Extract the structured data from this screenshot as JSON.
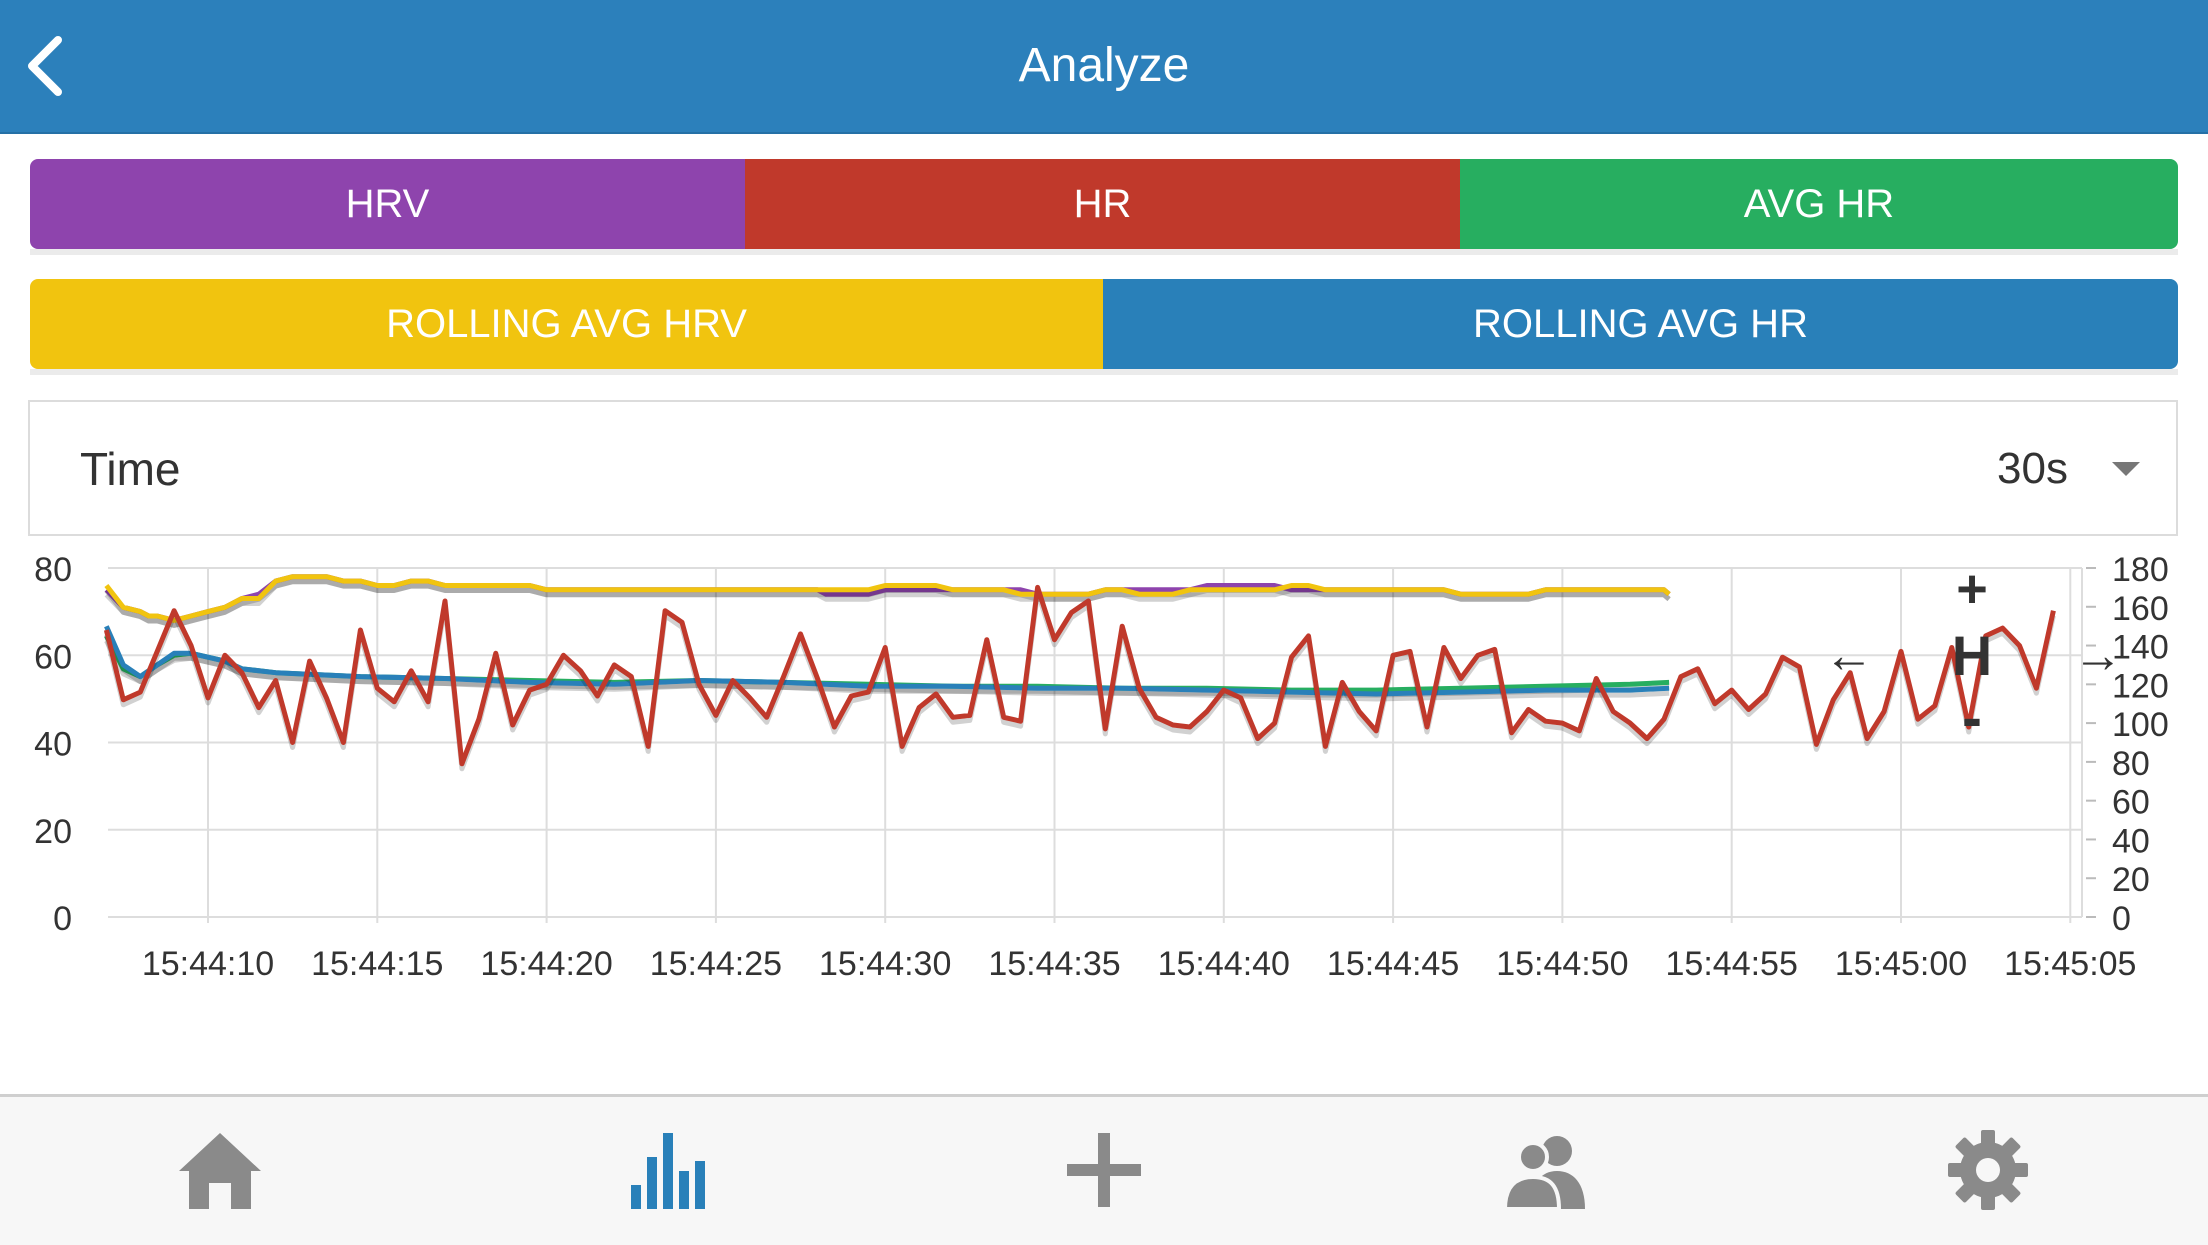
{
  "header": {
    "title": "Analyze"
  },
  "buttons": {
    "hrv": "HRV",
    "hr": "HR",
    "avg_hr": "AVG HR",
    "rolling_avg_hrv": "ROLLING AVG HRV",
    "rolling_avg_hr": "ROLLING AVG HR"
  },
  "selector": {
    "label": "Time",
    "value": "30s"
  },
  "chart_controls": {
    "plus": "+",
    "minus": "-",
    "h": "H",
    "left": "←",
    "right": "→"
  },
  "colors": {
    "header": "#2c80bb",
    "hrv": "#8e44ad",
    "hr": "#c0392b",
    "avg_hr": "#27ae60",
    "rolling_avg_hrv": "#f1c40f",
    "rolling_avg_hr": "#2980b9",
    "tab_active": "#2980b9",
    "tab_inactive": "#8a8a8a"
  },
  "tabs": [
    {
      "icon": "home-icon",
      "active": false
    },
    {
      "icon": "bar-chart-icon",
      "active": true
    },
    {
      "icon": "plus-icon",
      "active": false
    },
    {
      "icon": "users-icon",
      "active": false
    },
    {
      "icon": "gear-icon",
      "active": false
    }
  ],
  "chart_data": {
    "type": "line",
    "x_ticks": [
      "15:44:10",
      "15:44:15",
      "15:44:20",
      "15:44:25",
      "15:44:30",
      "15:44:35",
      "15:44:40",
      "15:44:45",
      "15:44:50",
      "15:44:55",
      "15:45:00",
      "15:45:05"
    ],
    "x_range": [
      "15:44:07",
      "15:45:05"
    ],
    "y_left": {
      "range": [
        0,
        80
      ],
      "ticks": [
        0,
        20,
        40,
        60,
        80
      ]
    },
    "y_right": {
      "range": [
        0,
        180
      ],
      "ticks": [
        0,
        20,
        40,
        60,
        80,
        100,
        120,
        140,
        160,
        180
      ]
    },
    "grid": true,
    "legend": "none",
    "series": [
      {
        "key": "hrv",
        "axis": "left",
        "color": "#8e44ad",
        "points": [
          [
            0,
            75
          ],
          [
            1,
            71
          ],
          [
            2,
            70
          ],
          [
            2.5,
            69
          ],
          [
            3,
            69
          ],
          [
            4,
            68
          ],
          [
            5,
            69
          ],
          [
            6,
            70
          ],
          [
            7,
            71
          ],
          [
            8,
            73
          ],
          [
            9,
            74
          ],
          [
            10,
            77
          ],
          [
            11,
            78
          ],
          [
            13,
            78
          ],
          [
            14,
            77
          ],
          [
            15,
            77
          ],
          [
            16,
            76
          ],
          [
            17,
            76
          ],
          [
            18,
            77
          ],
          [
            19,
            77
          ],
          [
            20,
            76
          ],
          [
            25,
            76
          ],
          [
            26,
            75
          ],
          [
            42,
            75
          ],
          [
            42.5,
            74
          ],
          [
            45,
            74
          ],
          [
            46,
            75
          ],
          [
            48,
            75
          ],
          [
            50,
            75
          ],
          [
            54,
            75
          ],
          [
            55,
            74
          ],
          [
            58,
            74
          ],
          [
            59,
            75
          ],
          [
            64,
            75
          ],
          [
            65,
            76
          ],
          [
            69,
            76
          ],
          [
            70,
            75
          ],
          [
            72,
            75
          ],
          [
            73,
            75
          ],
          [
            75,
            75
          ],
          [
            76,
            75
          ],
          [
            79,
            75
          ],
          [
            80,
            74
          ],
          [
            84,
            74
          ],
          [
            85,
            75
          ],
          [
            92,
            75
          ],
          [
            92.3,
            74
          ]
        ]
      },
      {
        "key": "rolling_avg_hrv",
        "axis": "left",
        "color": "#f1c40f",
        "points": [
          [
            0,
            76
          ],
          [
            1,
            71
          ],
          [
            2,
            70
          ],
          [
            2.5,
            69
          ],
          [
            3,
            69
          ],
          [
            4,
            68
          ],
          [
            5,
            69
          ],
          [
            6,
            70
          ],
          [
            7,
            71
          ],
          [
            8,
            73
          ],
          [
            9,
            73
          ],
          [
            10,
            77
          ],
          [
            11,
            78
          ],
          [
            13,
            78
          ],
          [
            14,
            77
          ],
          [
            15,
            77
          ],
          [
            16,
            76
          ],
          [
            17,
            76
          ],
          [
            18,
            77
          ],
          [
            19,
            77
          ],
          [
            20,
            76
          ],
          [
            25,
            76
          ],
          [
            26,
            75
          ],
          [
            45,
            75
          ],
          [
            46,
            76
          ],
          [
            49,
            76
          ],
          [
            50,
            75
          ],
          [
            53,
            75
          ],
          [
            54,
            74
          ],
          [
            58,
            74
          ],
          [
            59,
            75
          ],
          [
            60,
            75
          ],
          [
            61,
            74
          ],
          [
            63,
            74
          ],
          [
            64,
            75
          ],
          [
            69,
            75
          ],
          [
            70,
            76
          ],
          [
            71,
            76
          ],
          [
            72,
            75
          ],
          [
            79,
            75
          ],
          [
            80,
            74
          ],
          [
            84,
            74
          ],
          [
            85,
            75
          ],
          [
            92,
            75
          ],
          [
            92.3,
            74
          ]
        ]
      },
      {
        "key": "avg_hr",
        "axis": "right",
        "color": "#27ae60",
        "points": [
          [
            0,
            145
          ],
          [
            1,
            128
          ],
          [
            2,
            124
          ],
          [
            3,
            130
          ],
          [
            4,
            135
          ],
          [
            5,
            136
          ],
          [
            6,
            134
          ],
          [
            7,
            132
          ],
          [
            8,
            128
          ],
          [
            10,
            126
          ],
          [
            15,
            124
          ],
          [
            20,
            123
          ],
          [
            25,
            122
          ],
          [
            30,
            121
          ],
          [
            35,
            122
          ],
          [
            40,
            121
          ],
          [
            45,
            120
          ],
          [
            50,
            119
          ],
          [
            55,
            119
          ],
          [
            60,
            118
          ],
          [
            65,
            118
          ],
          [
            70,
            117
          ],
          [
            75,
            117
          ],
          [
            80,
            118
          ],
          [
            85,
            119
          ],
          [
            90,
            120
          ],
          [
            92.3,
            121
          ]
        ]
      },
      {
        "key": "rolling_avg_hr",
        "axis": "right",
        "color": "#2980b9",
        "points": [
          [
            0,
            150
          ],
          [
            1,
            130
          ],
          [
            2,
            124
          ],
          [
            3,
            130
          ],
          [
            4,
            136
          ],
          [
            5,
            136
          ],
          [
            6,
            134
          ],
          [
            7,
            132
          ],
          [
            8,
            128
          ],
          [
            10,
            126
          ],
          [
            15,
            124
          ],
          [
            20,
            123
          ],
          [
            25,
            121
          ],
          [
            30,
            120
          ],
          [
            35,
            122
          ],
          [
            40,
            121
          ],
          [
            45,
            119
          ],
          [
            50,
            119
          ],
          [
            55,
            118
          ],
          [
            60,
            118
          ],
          [
            65,
            117
          ],
          [
            70,
            116
          ],
          [
            75,
            115
          ],
          [
            80,
            116
          ],
          [
            85,
            117
          ],
          [
            90,
            117
          ],
          [
            92.3,
            118
          ]
        ]
      },
      {
        "key": "hr",
        "axis": "right",
        "color": "#c0392b",
        "points": [
          [
            0,
            148
          ],
          [
            1,
            112
          ],
          [
            2,
            116
          ],
          [
            3,
            137
          ],
          [
            4,
            158
          ],
          [
            5,
            140
          ],
          [
            6,
            113
          ],
          [
            7,
            135
          ],
          [
            8,
            126
          ],
          [
            9,
            108
          ],
          [
            10,
            122
          ],
          [
            11,
            90
          ],
          [
            12,
            132
          ],
          [
            13,
            113
          ],
          [
            14,
            90
          ],
          [
            15,
            148
          ],
          [
            16,
            118
          ],
          [
            17,
            111
          ],
          [
            18,
            127
          ],
          [
            19,
            111
          ],
          [
            20,
            163
          ],
          [
            21,
            79
          ],
          [
            22,
            102
          ],
          [
            23,
            136
          ],
          [
            24,
            99
          ],
          [
            25,
            117
          ],
          [
            26,
            120
          ],
          [
            27,
            135
          ],
          [
            28,
            127
          ],
          [
            29,
            114
          ],
          [
            30,
            130
          ],
          [
            31,
            124
          ],
          [
            32,
            88
          ],
          [
            33,
            158
          ],
          [
            34,
            152
          ],
          [
            35,
            120
          ],
          [
            36,
            104
          ],
          [
            37,
            122
          ],
          [
            38,
            113
          ],
          [
            39,
            103
          ],
          [
            40,
            124
          ],
          [
            41,
            146
          ],
          [
            42,
            123
          ],
          [
            43,
            98
          ],
          [
            44,
            114
          ],
          [
            45,
            116
          ],
          [
            46,
            139
          ],
          [
            47,
            88
          ],
          [
            48,
            108
          ],
          [
            49,
            115
          ],
          [
            50,
            103
          ],
          [
            51,
            104
          ],
          [
            52,
            143
          ],
          [
            53,
            103
          ],
          [
            54,
            101
          ],
          [
            55,
            170
          ],
          [
            56,
            143
          ],
          [
            57,
            157
          ],
          [
            58,
            163
          ],
          [
            59,
            97
          ],
          [
            60,
            150
          ],
          [
            61,
            118
          ],
          [
            62,
            103
          ],
          [
            63,
            99
          ],
          [
            64,
            98
          ],
          [
            65,
            106
          ],
          [
            66,
            117
          ],
          [
            67,
            113
          ],
          [
            68,
            92
          ],
          [
            69,
            100
          ],
          [
            70,
            134
          ],
          [
            71,
            145
          ],
          [
            72,
            88
          ],
          [
            73,
            121
          ],
          [
            74,
            106
          ],
          [
            75,
            96
          ],
          [
            76,
            135
          ],
          [
            77,
            137
          ],
          [
            78,
            98
          ],
          [
            79,
            139
          ],
          [
            80,
            123
          ],
          [
            81,
            135
          ],
          [
            82,
            138
          ],
          [
            83,
            95
          ],
          [
            84,
            107
          ],
          [
            85,
            101
          ],
          [
            86,
            100
          ],
          [
            87,
            96
          ],
          [
            88,
            123
          ],
          [
            89,
            106
          ],
          [
            90,
            100
          ],
          [
            91,
            92
          ],
          [
            92,
            102
          ],
          [
            93,
            124
          ],
          [
            94,
            128
          ],
          [
            95,
            110
          ],
          [
            96,
            117
          ],
          [
            97,
            107
          ],
          [
            98,
            115
          ],
          [
            99,
            134
          ],
          [
            100,
            129
          ],
          [
            101,
            89
          ],
          [
            102,
            112
          ],
          [
            103,
            126
          ],
          [
            104,
            92
          ],
          [
            105,
            106
          ],
          [
            106,
            137
          ],
          [
            107,
            102
          ],
          [
            108,
            109
          ],
          [
            109,
            139
          ],
          [
            110,
            98
          ],
          [
            111,
            145
          ],
          [
            112,
            149
          ],
          [
            113,
            140
          ],
          [
            114,
            118
          ],
          [
            115,
            158
          ]
        ]
      }
    ]
  }
}
